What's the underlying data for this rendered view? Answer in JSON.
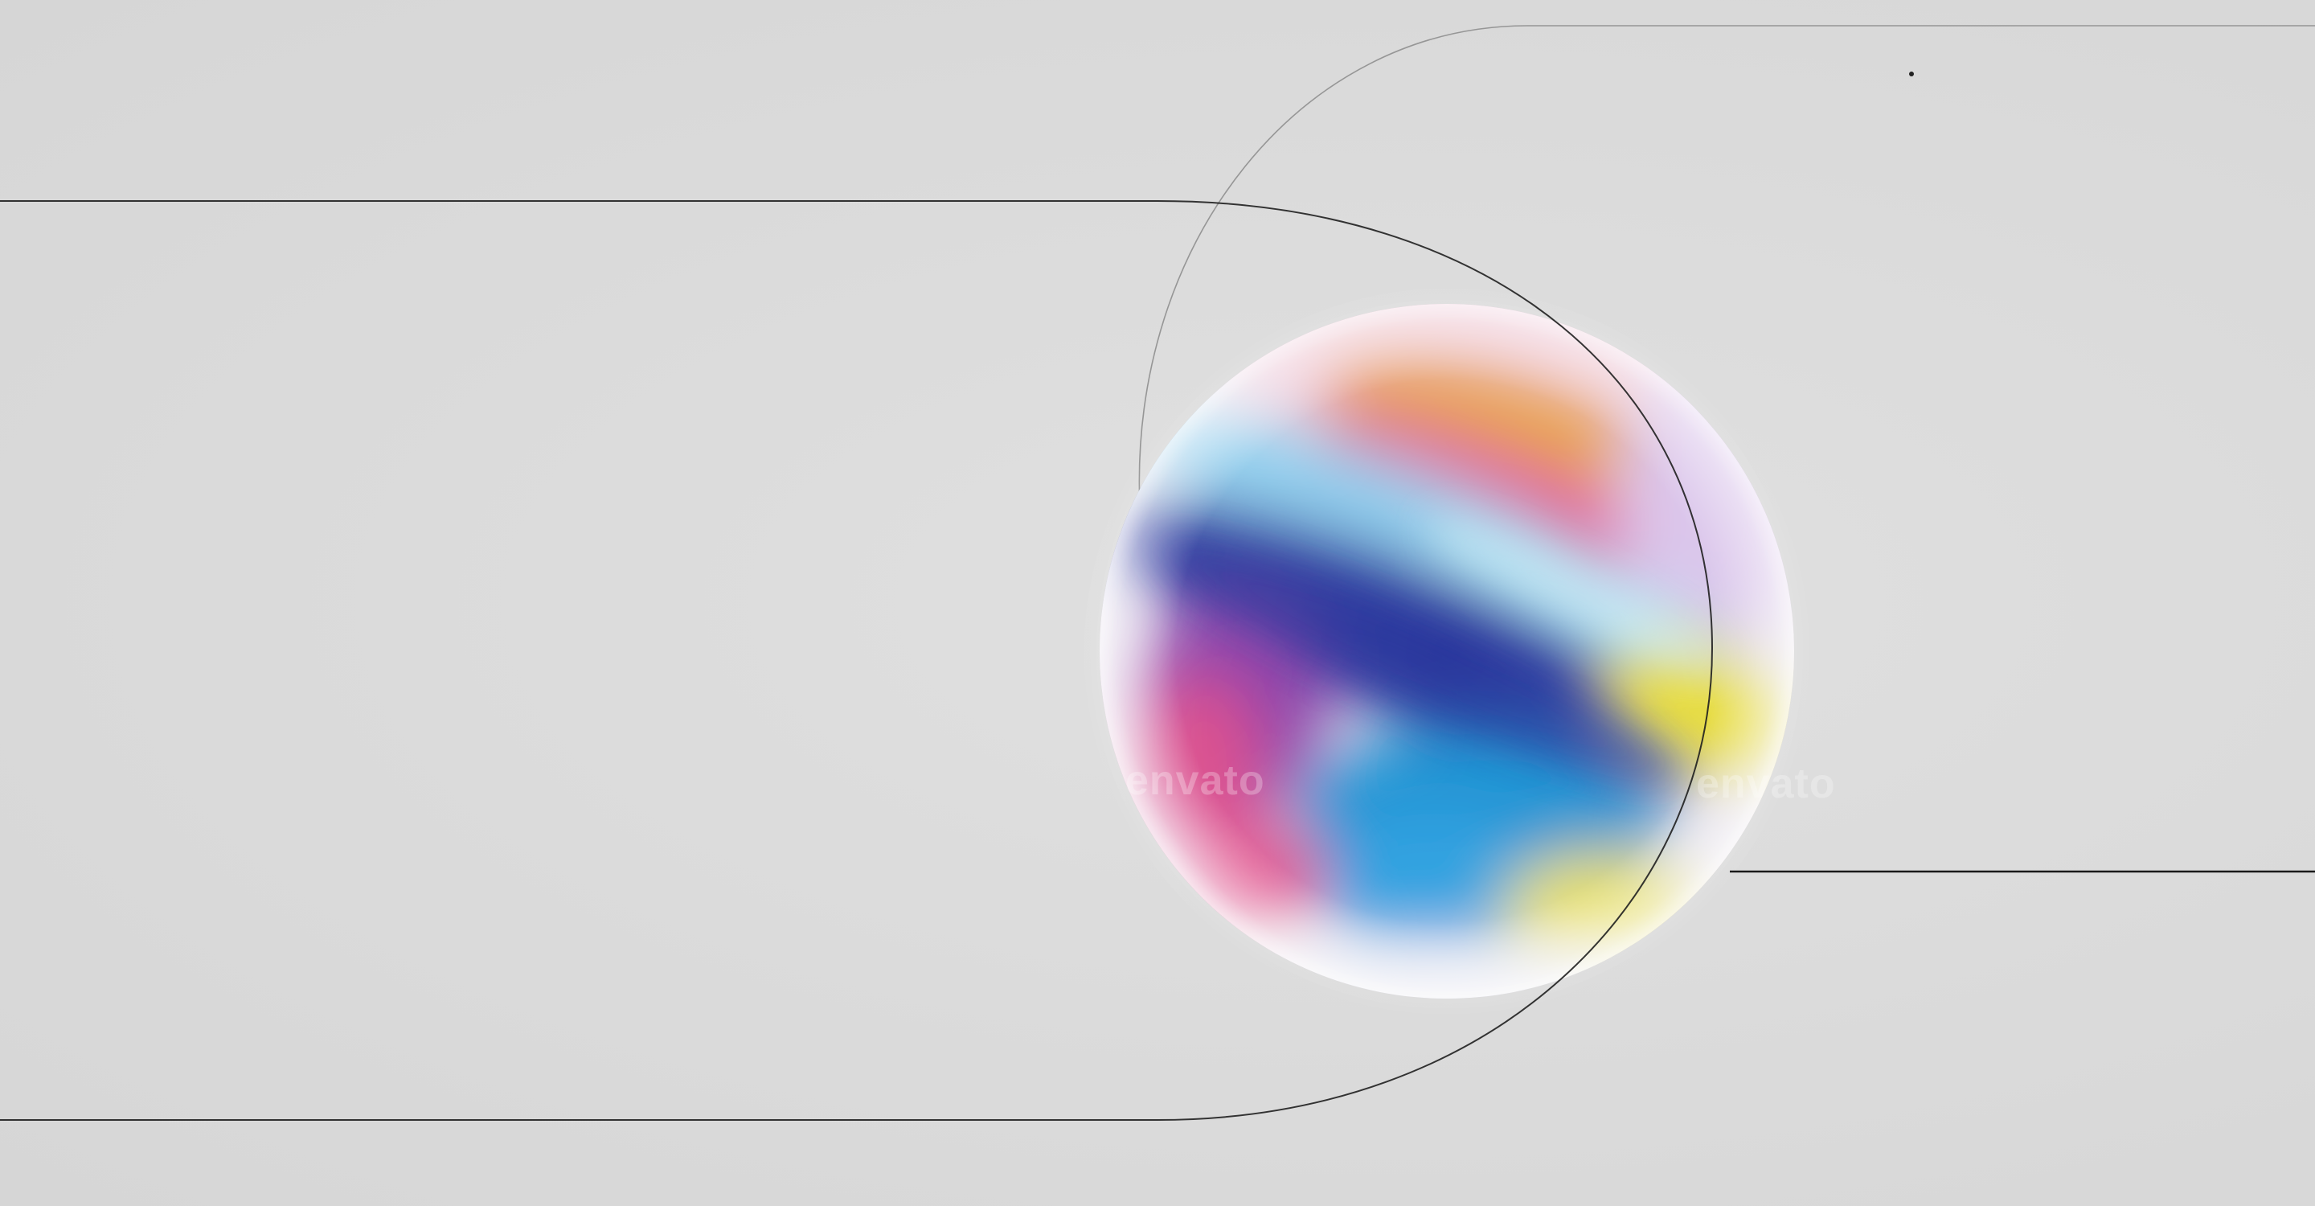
{
  "scene": {
    "description_colors": {
      "background": "#dcdcdc",
      "line": "#1f1f1f",
      "sphere_colors": [
        "#2c3b9e",
        "#e8a63c",
        "#e45a9a",
        "#7fc8ea",
        "#e6dc3c",
        "#1e8fd0",
        "#d94a86"
      ]
    }
  },
  "watermarks": {
    "primary": "envato",
    "secondary": "envato"
  }
}
